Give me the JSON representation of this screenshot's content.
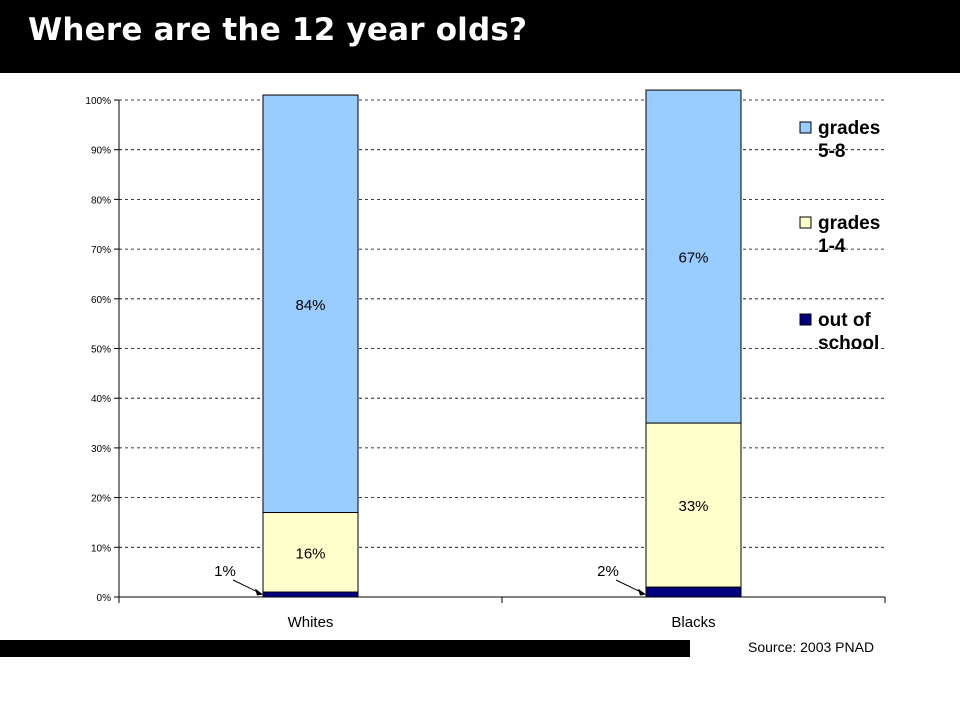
{
  "header": {
    "title": "Where are the 12 year olds?"
  },
  "footer": {
    "source": "Source: 2003 PNAD"
  },
  "chart_data": {
    "type": "bar",
    "stacked": true,
    "categories": [
      "Whites",
      "Blacks"
    ],
    "series": [
      {
        "name": "out of school",
        "values": [
          1,
          2
        ],
        "color": "#000080",
        "labels": [
          "1%",
          "2%"
        ]
      },
      {
        "name": "grades 1-4",
        "values": [
          16,
          33
        ],
        "color": "#FFFFCC",
        "labels": [
          "16%",
          "33%"
        ]
      },
      {
        "name": "grades 5-8",
        "values": [
          84,
          67
        ],
        "color": "#99CCFF",
        "labels": [
          "84%",
          "67%"
        ]
      }
    ],
    "legend": [
      {
        "line1": "grades",
        "line2": "5-8",
        "color": "#99CCFF"
      },
      {
        "line1": "grades",
        "line2": "1-4",
        "color": "#FFFFCC"
      },
      {
        "line1": "out of",
        "line2": "school",
        "color": "#000080"
      }
    ],
    "yticks": [
      "0%",
      "10%",
      "20%",
      "30%",
      "40%",
      "50%",
      "60%",
      "70%",
      "80%",
      "90%",
      "100%"
    ],
    "ylim": [
      0,
      100
    ],
    "grid": true,
    "legend_position": "right"
  }
}
